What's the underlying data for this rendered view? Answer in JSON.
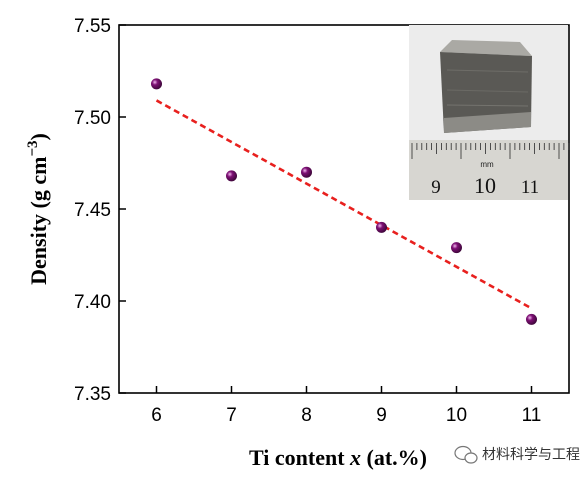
{
  "chart_data": {
    "type": "scatter",
    "x": [
      6,
      7,
      8,
      9,
      10,
      11
    ],
    "y": [
      7.518,
      7.468,
      7.47,
      7.44,
      7.429,
      7.39
    ],
    "fit_line": {
      "x1": 6,
      "y1": 7.509,
      "x2": 11,
      "y2": 7.396,
      "style": "dashed",
      "color": "#e8201e"
    },
    "point_color": "#7e1075",
    "xlim": [
      5.5,
      11.5
    ],
    "ylim": [
      7.35,
      7.55
    ],
    "xticks": [
      6,
      7,
      8,
      9,
      10,
      11
    ],
    "yticks": [
      "7.35",
      "7.40",
      "7.45",
      "7.50",
      "7.55"
    ],
    "xlabel": {
      "main": "Ti content ",
      "italic": "x",
      "tail": " (at.%)"
    },
    "ylabel": {
      "main": "Density (g cm",
      "sup": "−3",
      "tail": ")"
    },
    "inset": {
      "description": "photo-of-metal-sample-on-ruler",
      "ruler_labels": [
        "9",
        "10",
        "11"
      ],
      "ruler_unit": "mm"
    },
    "grid": false
  },
  "watermark": {
    "text": "材料科学与工程",
    "icon": "wechat-icon"
  }
}
